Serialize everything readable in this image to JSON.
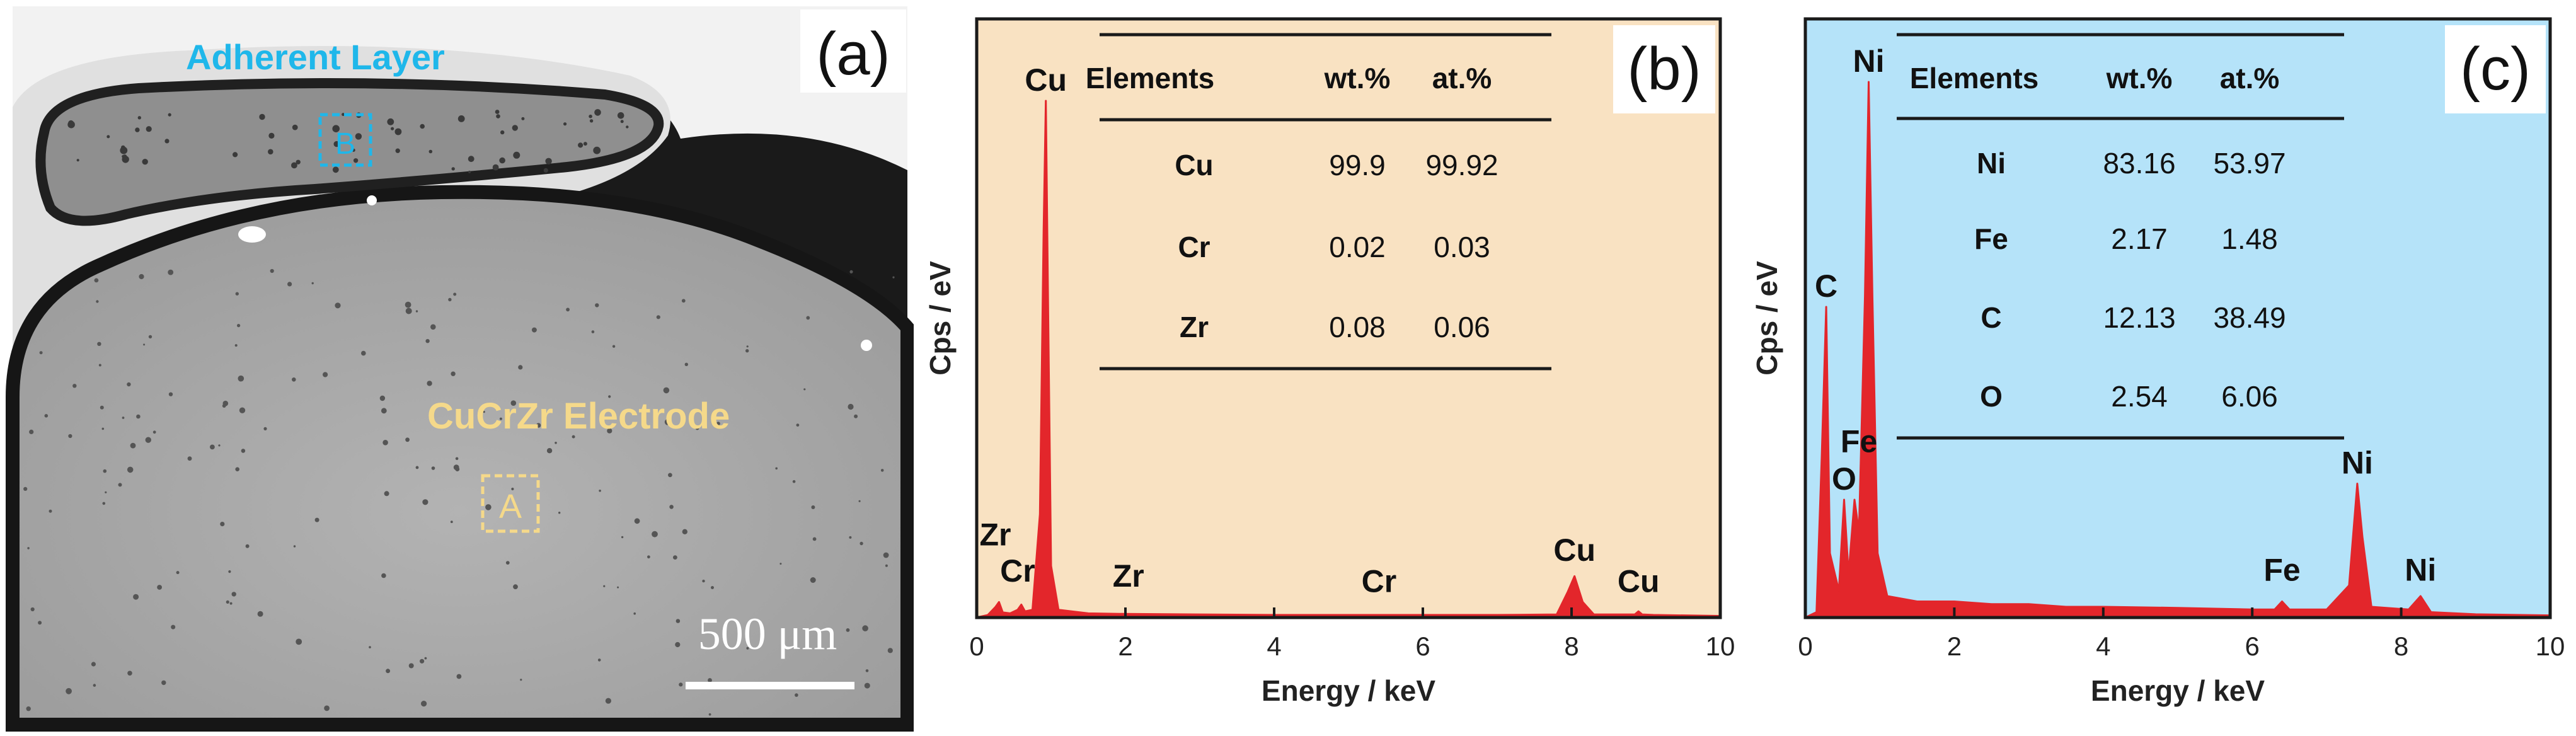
{
  "panel_a": {
    "label": "(a)",
    "adherent_label": "Adherent Layer",
    "electrode_label": "CuCrZr Electrode",
    "box_a": "A",
    "box_b": "B",
    "scale_bar": "500 μm",
    "colors": {
      "adherent": "#1fb7ea",
      "electrode": "#f5d98a"
    }
  },
  "chart_data": [
    {
      "type": "line",
      "panel_label": "(b)",
      "background": "#f9e2c2",
      "line_color": "#e3262b",
      "xlabel": "Energy / keV",
      "ylabel": "Cps / eV",
      "xlim": [
        0,
        10
      ],
      "ylim": [
        0,
        100
      ],
      "xticks": [
        0,
        2,
        4,
        6,
        8,
        10
      ],
      "x": [
        0.0,
        0.15,
        0.25,
        0.3,
        0.35,
        0.45,
        0.55,
        0.6,
        0.65,
        0.75,
        0.85,
        0.9,
        0.93,
        0.96,
        1.0,
        1.1,
        1.5,
        2.0,
        3.0,
        4.0,
        5.0,
        6.0,
        7.0,
        7.8,
        7.95,
        8.04,
        8.15,
        8.3,
        8.85,
        8.9,
        8.95,
        9.1,
        10.0
      ],
      "y": [
        0,
        0.5,
        2,
        3,
        1,
        0.8,
        1.5,
        2.5,
        1.2,
        1.5,
        20,
        75,
        100,
        60,
        10,
        1.5,
        0.8,
        0.7,
        0.6,
        0.5,
        0.5,
        0.5,
        0.5,
        0.6,
        5,
        8,
        3,
        0.6,
        0.6,
        1.2,
        0.6,
        0.5,
        0.3
      ],
      "peak_labels": [
        {
          "text": "Cu",
          "x": 0.93,
          "y": 100
        },
        {
          "text": "Zr",
          "x": 0.25,
          "y": 12
        },
        {
          "text": "Cr",
          "x": 0.55,
          "y": 5
        },
        {
          "text": "Zr",
          "x": 2.04,
          "y": 4
        },
        {
          "text": "Cr",
          "x": 5.41,
          "y": 3
        },
        {
          "text": "Cu",
          "x": 8.04,
          "y": 9
        },
        {
          "text": "Cu",
          "x": 8.9,
          "y": 3
        }
      ],
      "table": {
        "headers": [
          "Elements",
          "wt.%",
          "at.%"
        ],
        "rows": [
          [
            "Cu",
            "99.9",
            "99.92"
          ],
          [
            "Cr",
            "0.02",
            "0.03"
          ],
          [
            "Zr",
            "0.08",
            "0.06"
          ]
        ]
      }
    },
    {
      "type": "line",
      "panel_label": "(c)",
      "background": "#b5e3f9",
      "line_color": "#e3262b",
      "xlabel": "Energy / keV",
      "ylabel": "Cps / eV",
      "xlim": [
        0,
        10
      ],
      "ylim": [
        0,
        100
      ],
      "xticks": [
        0,
        2,
        4,
        6,
        8,
        10
      ],
      "x": [
        0.0,
        0.15,
        0.22,
        0.28,
        0.33,
        0.45,
        0.52,
        0.58,
        0.66,
        0.72,
        0.8,
        0.85,
        0.9,
        0.97,
        1.1,
        1.5,
        2.0,
        2.5,
        3.0,
        3.5,
        4.0,
        5.0,
        6.0,
        6.3,
        6.4,
        6.5,
        7.0,
        7.3,
        7.41,
        7.48,
        7.6,
        8.1,
        8.26,
        8.4,
        9.0,
        10.0
      ],
      "y": [
        0,
        1,
        30,
        58,
        12,
        5,
        22,
        8,
        22,
        16,
        60,
        100,
        60,
        12,
        4,
        3,
        3,
        2.5,
        2.5,
        2,
        2,
        1.8,
        1.5,
        1.5,
        3,
        1.5,
        1.5,
        6,
        25,
        15,
        2,
        1.5,
        4,
        1,
        0.6,
        0.4
      ],
      "peak_labels": [
        {
          "text": "Ni",
          "x": 0.85,
          "y": 100
        },
        {
          "text": "C",
          "x": 0.28,
          "y": 58
        },
        {
          "text": "Fe",
          "x": 0.72,
          "y": 29
        },
        {
          "text": "O",
          "x": 0.52,
          "y": 22
        },
        {
          "text": "Ni",
          "x": 7.41,
          "y": 25
        },
        {
          "text": "Fe",
          "x": 6.4,
          "y": 5
        },
        {
          "text": "Ni",
          "x": 8.26,
          "y": 5
        }
      ],
      "table": {
        "headers": [
          "Elements",
          "wt.%",
          "at.%"
        ],
        "rows": [
          [
            "Ni",
            "83.16",
            "53.97"
          ],
          [
            "Fe",
            "2.17",
            "1.48"
          ],
          [
            "C",
            "12.13",
            "38.49"
          ],
          [
            "O",
            "2.54",
            "6.06"
          ]
        ]
      }
    }
  ]
}
